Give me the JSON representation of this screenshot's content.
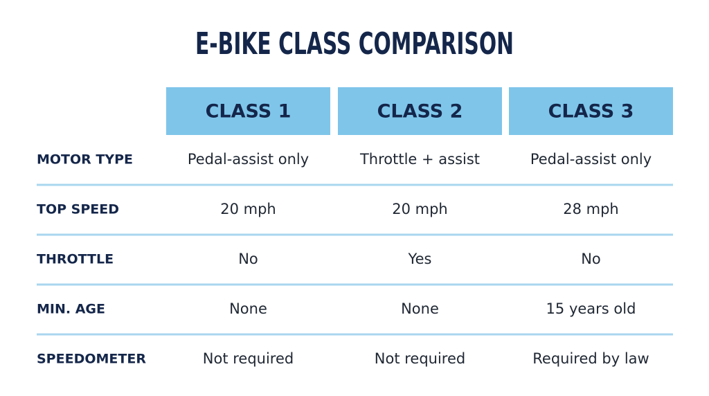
{
  "header": {
    "title": "E-BIKE CLASS COMPARISON"
  },
  "table": {
    "columns": [
      "CLASS 1",
      "CLASS 2",
      "CLASS 3"
    ],
    "rows": [
      {
        "label": "MOTOR TYPE",
        "cells": [
          "Pedal-assist only",
          "Throttle + assist",
          "Pedal-assist only"
        ]
      },
      {
        "label": "TOP SPEED",
        "cells": [
          "20 mph",
          "20 mph",
          "28 mph"
        ]
      },
      {
        "label": "THROTTLE",
        "cells": [
          "No",
          "Yes",
          "No"
        ]
      },
      {
        "label": "MIN. AGE",
        "cells": [
          "None",
          "None",
          "15 years old"
        ]
      },
      {
        "label": "SPEEDOMETER",
        "cells": [
          "Not required",
          "Not required",
          "Required by law"
        ]
      }
    ]
  }
}
